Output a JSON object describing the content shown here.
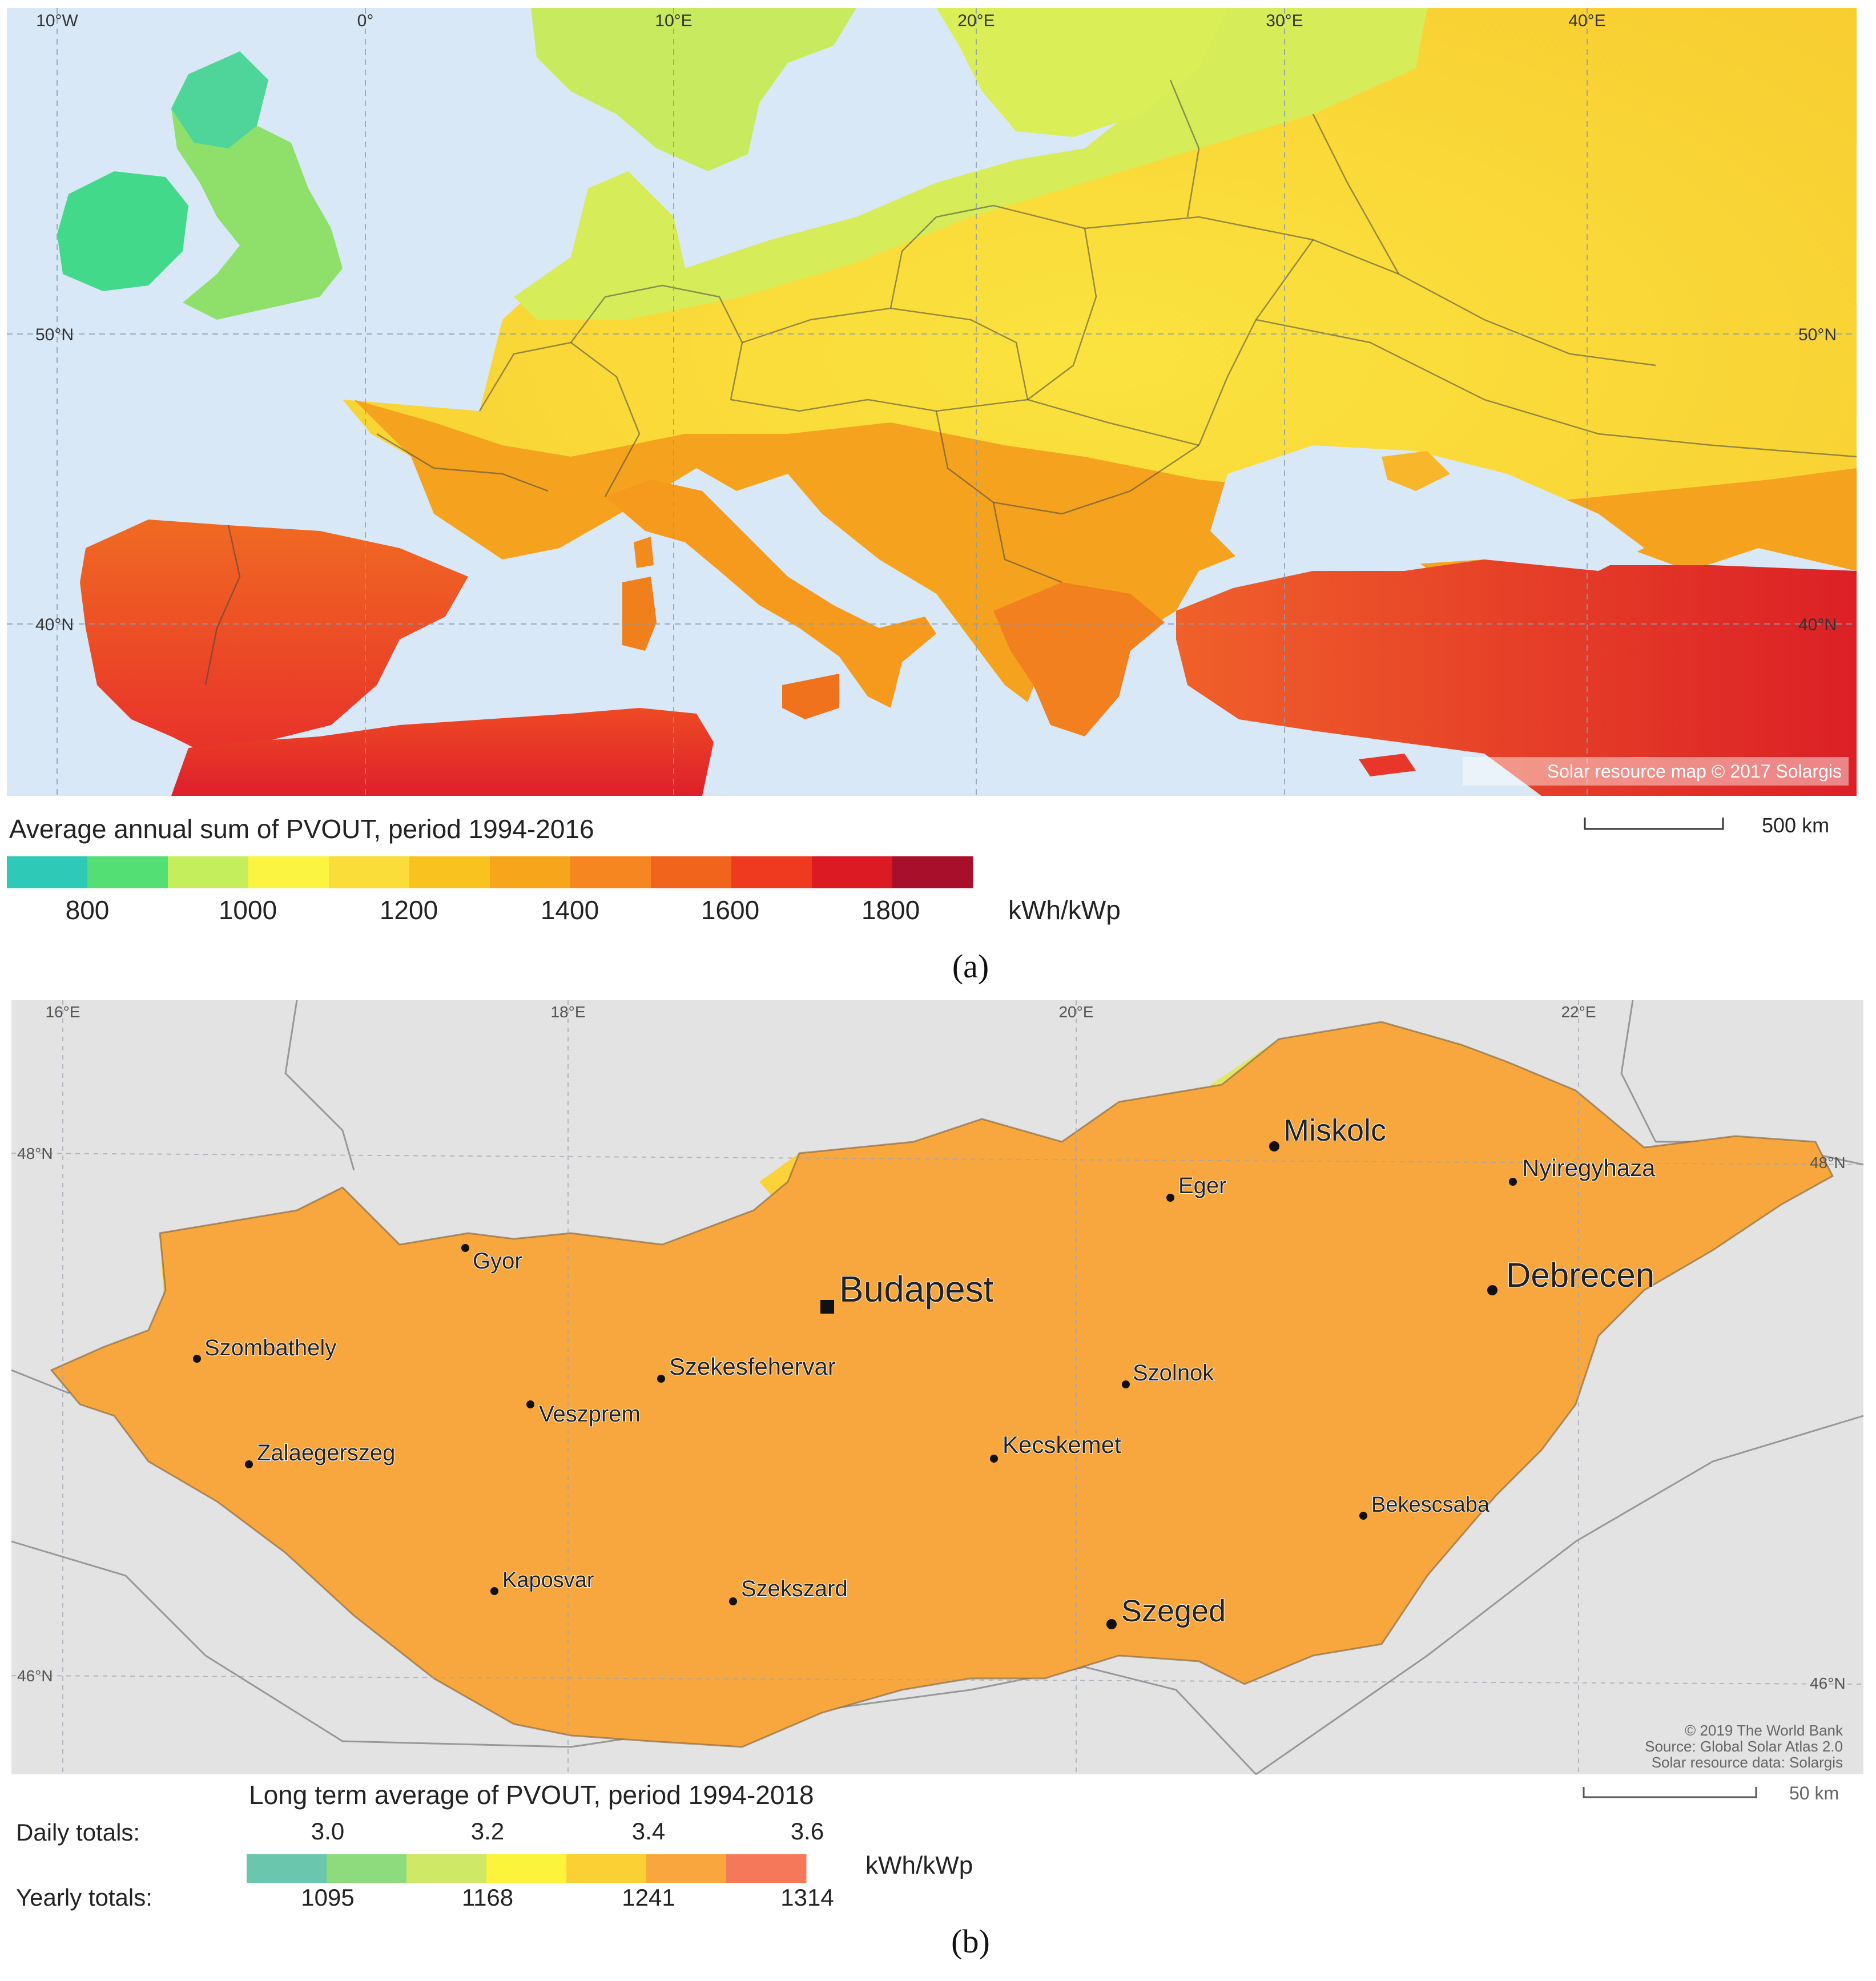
{
  "panel_a": {
    "letter": "(a)",
    "lon_labels": [
      "10°W",
      "0°",
      "10°E",
      "20°E",
      "30°E",
      "40°E"
    ],
    "lat_labels": [
      "50°N",
      "40°N"
    ],
    "copyright": "Solar resource map © 2017 Solargis",
    "scale_label": "500 km",
    "legend_title": "Average annual sum of PVOUT, period 1994-2016",
    "legend_ticks": [
      "800",
      "1000",
      "1200",
      "1400",
      "1600",
      "1800"
    ],
    "legend_unit": "kWh/kWp",
    "legend_colors": [
      "#2ec9b7",
      "#54df74",
      "#c4ee5c",
      "#fbf440",
      "#fbdd3a",
      "#f9c21f",
      "#f7a51a",
      "#f58620",
      "#f0641c",
      "#ef3a1f",
      "#dc1a24",
      "#a80f2a"
    ]
  },
  "panel_b": {
    "letter": "(b)",
    "lon_labels": [
      "16°E",
      "18°E",
      "20°E",
      "22°E"
    ],
    "lat_labels": [
      "48°N",
      "46°N"
    ],
    "cities": [
      {
        "name": "Budapest",
        "capital": true
      },
      {
        "name": "Miskolc"
      },
      {
        "name": "Debrecen"
      },
      {
        "name": "Szeged"
      },
      {
        "name": "Nyiregyhaza"
      },
      {
        "name": "Eger"
      },
      {
        "name": "Gyor"
      },
      {
        "name": "Szombathely"
      },
      {
        "name": "Szekesfehervar"
      },
      {
        "name": "Szolnok"
      },
      {
        "name": "Veszprem"
      },
      {
        "name": "Kecskemet"
      },
      {
        "name": "Zalaegerszeg"
      },
      {
        "name": "Bekescsaba"
      },
      {
        "name": "Kaposvar"
      },
      {
        "name": "Szekszard"
      }
    ],
    "credits": [
      "© 2019 The World Bank",
      "Source: Global Solar Atlas 2.0",
      "Solar resource data: Solargis"
    ],
    "scale_label": "50 km",
    "legend_title": "Long term average of PVOUT, period 1994-2018",
    "daily_label": "Daily totals:",
    "daily_ticks": [
      "3.0",
      "3.2",
      "3.4",
      "3.6"
    ],
    "yearly_label": "Yearly totals:",
    "yearly_ticks": [
      "1095",
      "1168",
      "1241",
      "1314"
    ],
    "legend_unit": "kWh/kWp",
    "legend_colors": [
      "#6ac7ae",
      "#8edb7e",
      "#cfe865",
      "#fbf33c",
      "#fbd035",
      "#f9a73c",
      "#f6785a"
    ]
  }
}
